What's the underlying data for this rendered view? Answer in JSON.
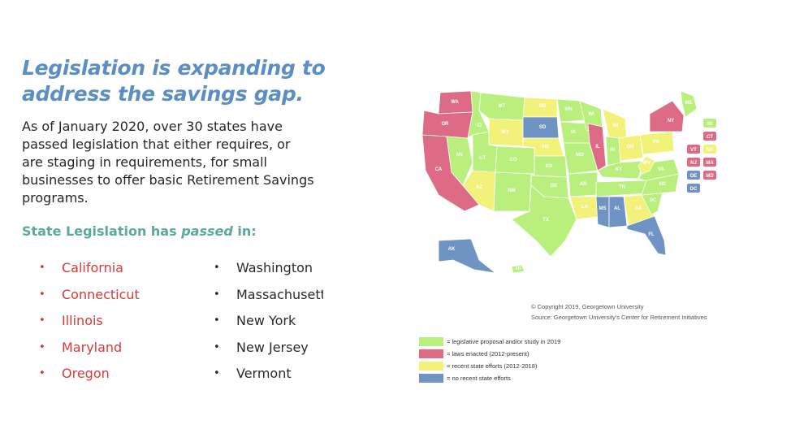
{
  "slide": {
    "title_line1": "Legislation is expanding to",
    "title_line2": "address the savings gap.",
    "intro": "As of January 2020,  over 30 states have passed legislation that either requires, or are staging in requirements, for small businesses to offer basic Retirement Savings programs.",
    "passed_prefix": "State Legislation has ",
    "passed_em": "passed",
    "passed_suffix": " in:",
    "states_col1": [
      "California",
      "Connecticut",
      "Illinois",
      "Maryland",
      "Oregon"
    ],
    "states_col2": [
      "Washington",
      "Massachusetts",
      "New York",
      "New Jersey",
      "Vermont"
    ]
  },
  "map": {
    "copyright": "© Copyright 2019, Georgetown University",
    "source": "Source: Georgetown University's Center for Retirement Initiatives",
    "legend": [
      {
        "label": "= legislative proposal and/or study in 2019",
        "color": "#b9ef7d"
      },
      {
        "label": "= laws enacted (2012-present)",
        "color": "#de6b86"
      },
      {
        "label": "= recent state efforts (2012-2018)",
        "color": "#f2f27a"
      },
      {
        "label": "= no recent state efforts",
        "color": "#6f93c2"
      }
    ],
    "labels": {
      "WA": "WA",
      "OR": "OR",
      "CA": "CA",
      "NV": "NV",
      "ID": "ID",
      "MT": "MT",
      "WY": "WY",
      "UT": "UT",
      "AZ": "AZ",
      "CO": "CO",
      "NM": "NM",
      "ND": "ND",
      "SD": "SD",
      "NE": "NE",
      "KS": "KS",
      "OK": "OK",
      "TX": "TX",
      "MN": "MN",
      "IA": "IA",
      "MO": "MO",
      "AR": "AR",
      "LA": "LA",
      "WI": "WI",
      "IL": "IL",
      "MI": "MI",
      "IN": "IN",
      "OH": "OH",
      "KY": "KY",
      "TN": "TN",
      "MS": "MS",
      "AL": "AL",
      "GA": "GA",
      "FL": "FL",
      "SC": "SC",
      "NC": "NC",
      "VA": "VA",
      "WV": "WV",
      "PA": "PA",
      "NY": "NY",
      "ME": "ME",
      "AK": "AK",
      "HI": "HI",
      "RI": "RI",
      "CT": "CT",
      "VT": "VT",
      "NH": "NH",
      "NJ": "NJ",
      "MA": "MA",
      "DE": "DE",
      "MD": "MD",
      "DC": "DC"
    },
    "colors": {
      "green": "#b9ef7d",
      "red": "#de6b86",
      "yellow": "#f2f27a",
      "blue": "#6f93c2"
    }
  }
}
